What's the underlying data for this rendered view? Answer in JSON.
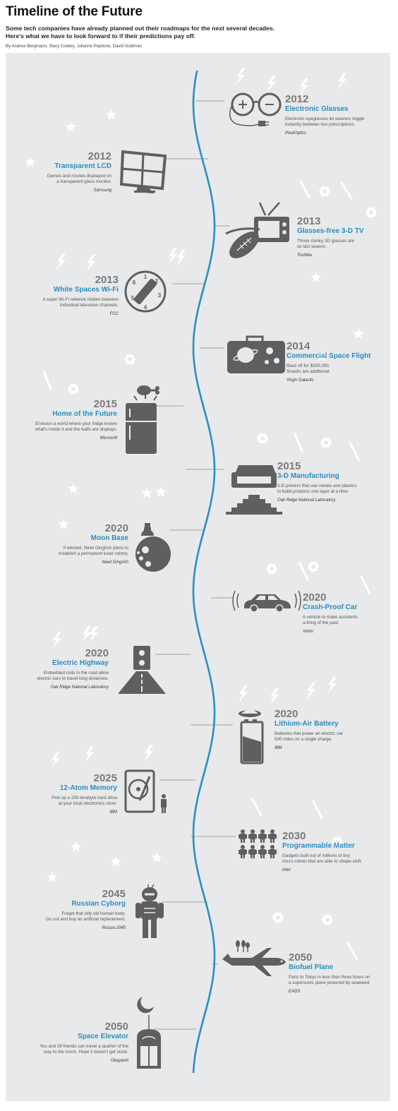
{
  "header": {
    "title": "Timeline of the Future",
    "subtitle_line1": "Some tech companies have already planned out their roadmaps for the next several decades.",
    "subtitle_line2": "Here's what we have to look forward to if their predictions pay off.",
    "byline": "By Andrew Bergmann, Stacy Cowley, Julianne Pepitone, David Goldman"
  },
  "items": [
    {
      "year": "2012",
      "name": "Electronic Glasses",
      "desc": "Electronic eyeglasses let wearers toggle\ninstantly between two prescriptions.",
      "source": "PixelOptics",
      "icon": "eyeglasses-icon"
    },
    {
      "year": "2012",
      "name": "Transparent LCD",
      "desc": "Games and movies displayed on\na transparent glass monitor.",
      "source": "Samsung",
      "icon": "monitor-icon"
    },
    {
      "year": "2013",
      "name": "Glasses-free 3-D TV",
      "desc": "Those clunky 3D glasses are\nso last season.",
      "source": "Toshiba",
      "icon": "tv-football-icon"
    },
    {
      "year": "2013",
      "name": "White Spaces Wi-Fi",
      "desc": "A super Wi-Fi network hidden between\nindividual television channels.",
      "source": "FCC",
      "icon": "channel-dial-icon"
    },
    {
      "year": "2014",
      "name": "Commercial Space Flight",
      "desc": "Blast off for $200,000.\nSnacks are additional.",
      "source": "Virgin Galactic",
      "icon": "suitcase-icon"
    },
    {
      "year": "2015",
      "name": "Home of the Future",
      "desc": "Envision a world where your fridge knows\nwhat's inside it and the walls are displays.",
      "source": "Microsoft",
      "icon": "fridge-icon"
    },
    {
      "year": "2015",
      "name": "3-D Manufacturing",
      "desc": "3-D printers that use metals and plastics\nto build products one layer at a time.",
      "source": "Oak Ridge National Laboratory",
      "icon": "printer-pyramid-icon"
    },
    {
      "year": "2020",
      "name": "Moon Base",
      "desc": "If elected, Newt Gingrich plans to\nestablish a permanent lunar colony.",
      "source": "Newt Gingrich",
      "icon": "moon-base-icon"
    },
    {
      "year": "2020",
      "name": "Crash-Proof Car",
      "desc": "A vehicle to make accidents\na thing of the past.",
      "source": "Volvo",
      "icon": "car-icon"
    },
    {
      "year": "2020",
      "name": "Electric Highway",
      "desc": "Embedded coils in the road allow\nelectric cars to travel long distances.",
      "source": "Oak Ridge National Laboratory",
      "icon": "outlet-road-icon"
    },
    {
      "year": "2020",
      "name": "Lithium-Air Battery",
      "desc": "Batteries that power an electric car\n500 miles on a single charge.",
      "source": "IBM",
      "icon": "battery-icon"
    },
    {
      "year": "2025",
      "name": "12-Atom Memory",
      "desc": "Pick up a 250-terabyte hard drive\nat your local electronics store.",
      "source": "IBM",
      "icon": "hard-drive-icon"
    },
    {
      "year": "2030",
      "name": "Programmable Matter",
      "desc": "Gadgets built out of millions of tiny\nmicro-robots that are able to shape-shift.",
      "source": "Intel",
      "icon": "robots-icon"
    },
    {
      "year": "2045",
      "name": "Russian Cyborg",
      "desc": "Forget that silly old human body.\nGo out and buy an artificial replacement.",
      "source": "Russia 2045",
      "icon": "cyborg-icon"
    },
    {
      "year": "2050",
      "name": "Biofuel Plane",
      "desc": "Paris to Tokyo in less than three hours on\na supersonic plane powered by seaweed.",
      "source": "EADS",
      "icon": "plane-icon"
    },
    {
      "year": "2050",
      "name": "Space Elevator",
      "desc": "You and 29 friends can travel a quarter of the\nway to the moon. Hope it doesn't get stuck.",
      "source": "Obayashi",
      "icon": "space-elevator-icon"
    }
  ],
  "colors": {
    "accent": "#2b8dc2",
    "line": "#2790c4",
    "icon": "#5e5f61",
    "panel": "#e8e9ea",
    "deco": "#ffffff"
  }
}
